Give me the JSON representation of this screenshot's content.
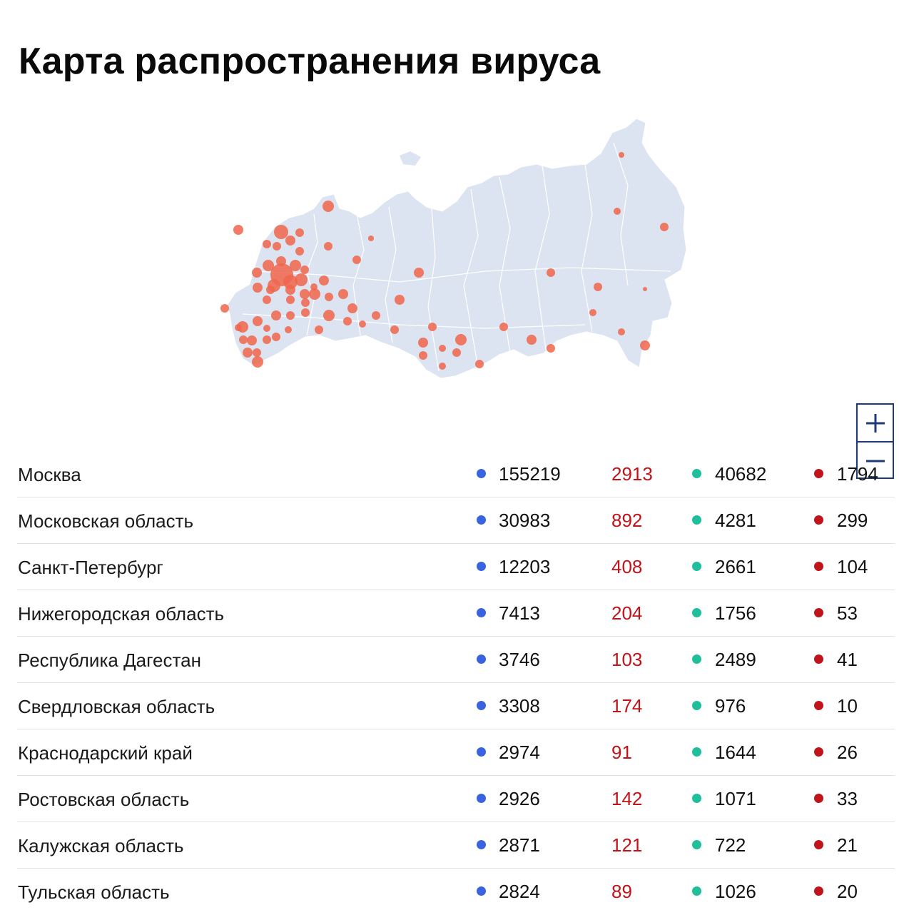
{
  "title": "Карта распространения вируса",
  "colors": {
    "map_fill": "#dce4f1",
    "map_border": "#ffffff",
    "bubble": "#f0654b",
    "cases_dot": "#3a63e0",
    "new_cases_text": "#c0141a",
    "recovered_dot": "#1fbf9c",
    "deaths_dot": "#c0141a",
    "zoom_border": "#1e3a78"
  },
  "map": {
    "zoom_in_icon": "plus-icon",
    "zoom_out_icon": "minus-icon"
  },
  "table": {
    "rows": [
      {
        "region": "Москва",
        "cases": "155219",
        "new_cases": "2913",
        "recovered": "40682",
        "deaths": "1794"
      },
      {
        "region": "Московская область",
        "cases": "30983",
        "new_cases": "892",
        "recovered": "4281",
        "deaths": "299"
      },
      {
        "region": "Санкт-Петербург",
        "cases": "12203",
        "new_cases": "408",
        "recovered": "2661",
        "deaths": "104"
      },
      {
        "region": "Нижегородская область",
        "cases": "7413",
        "new_cases": "204",
        "recovered": "1756",
        "deaths": "53"
      },
      {
        "region": "Республика Дагестан",
        "cases": "3746",
        "new_cases": "103",
        "recovered": "2489",
        "deaths": "41"
      },
      {
        "region": "Свердловская область",
        "cases": "3308",
        "new_cases": "174",
        "recovered": "976",
        "deaths": "10"
      },
      {
        "region": "Краснодарский край",
        "cases": "2974",
        "new_cases": "91",
        "recovered": "1644",
        "deaths": "26"
      },
      {
        "region": "Ростовская область",
        "cases": "2926",
        "new_cases": "142",
        "recovered": "1071",
        "deaths": "33"
      },
      {
        "region": "Калужская область",
        "cases": "2871",
        "new_cases": "121",
        "recovered": "722",
        "deaths": "21"
      },
      {
        "region": "Тульская область",
        "cases": "2824",
        "new_cases": "89",
        "recovered": "1026",
        "deaths": "20"
      }
    ]
  }
}
